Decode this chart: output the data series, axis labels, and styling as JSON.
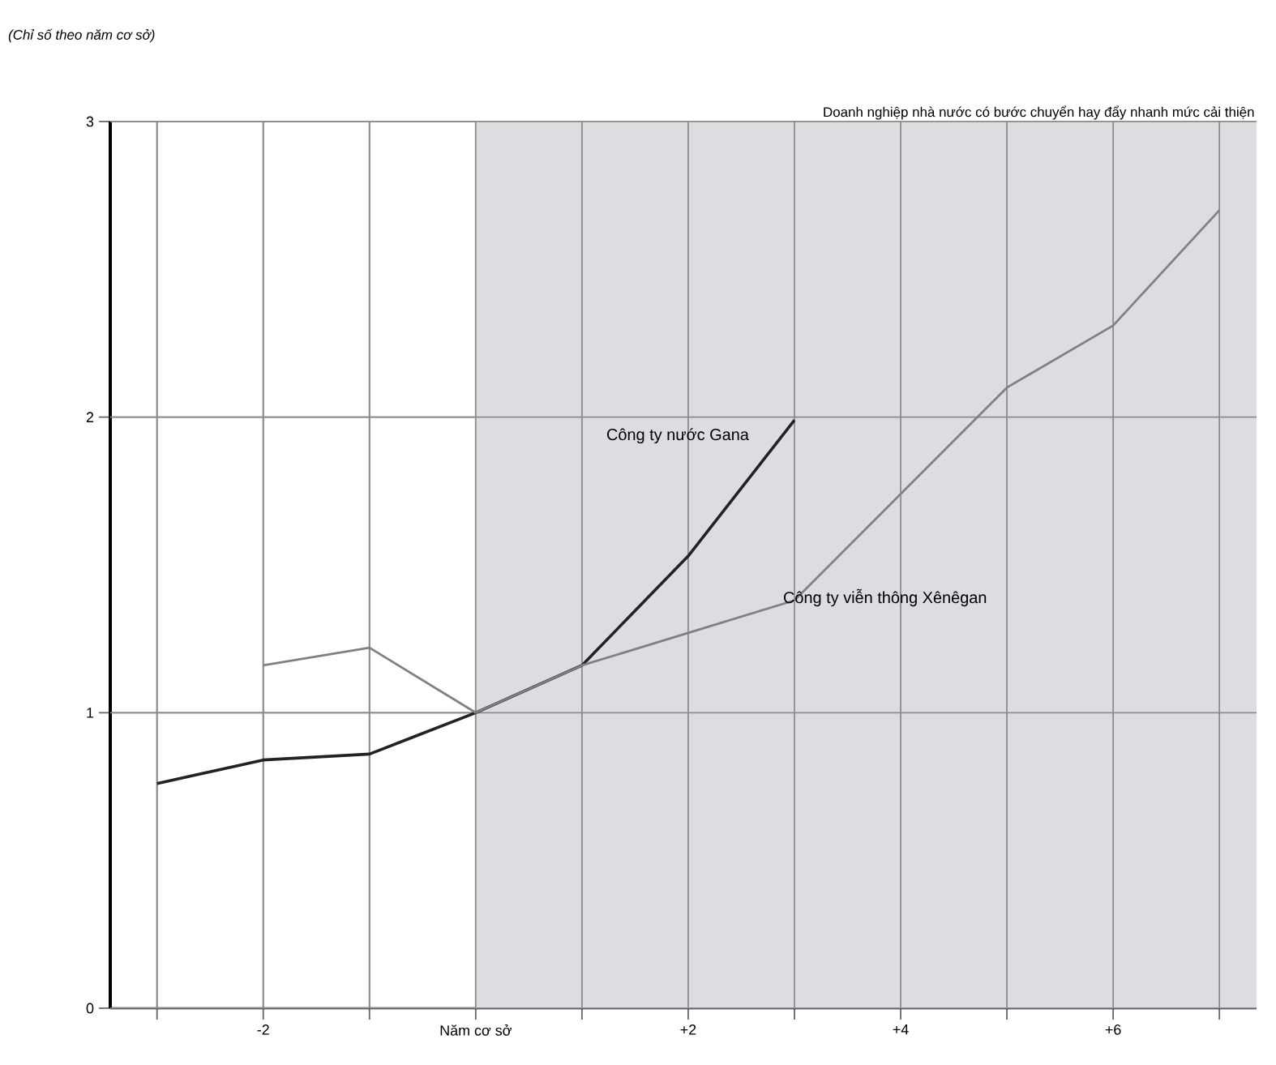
{
  "chart_data": {
    "type": "line",
    "annotations": [
      "(Chỉ số theo năm cơ sở)"
    ],
    "x": [
      -3,
      -2,
      -1,
      0,
      1,
      2,
      3,
      4,
      5,
      6,
      7
    ],
    "xlim": [
      -3.44,
      7.35
    ],
    "ylim": [
      0,
      3
    ],
    "xticks": [
      {
        "value": -3,
        "label": null
      },
      {
        "value": -2,
        "label": "-2"
      },
      {
        "value": -1,
        "label": null
      },
      {
        "value": 0,
        "label": "Năm cơ sở"
      },
      {
        "value": 1,
        "label": null
      },
      {
        "value": 2,
        "label": "+2"
      },
      {
        "value": 3,
        "label": null
      },
      {
        "value": 4,
        "label": "+4"
      },
      {
        "value": 5,
        "label": null
      },
      {
        "value": 6,
        "label": "+6"
      },
      {
        "value": 7,
        "label": null
      }
    ],
    "yticks": [
      0,
      1,
      2,
      3
    ],
    "grid": true,
    "bands": [
      {
        "axis": "x",
        "from": 0,
        "to": 7.35,
        "label": "Doanh nghiệp nhà nước có bước chuyển hay đẩy nhanh mức cải thiện",
        "color": "#dcdde0"
      }
    ],
    "series": [
      {
        "name": "Công ty nước Gana",
        "color": "#222222",
        "values": [
          0.76,
          0.84,
          0.86,
          1.0,
          1.16,
          1.53,
          1.99,
          null,
          null,
          null,
          null
        ]
      },
      {
        "name": "Công ty viễn thông Xênêgan",
        "color": "#808080",
        "values": [
          null,
          1.16,
          1.22,
          1.0,
          1.16,
          1.27,
          1.38,
          1.74,
          2.1,
          2.31,
          2.7
        ]
      }
    ]
  }
}
